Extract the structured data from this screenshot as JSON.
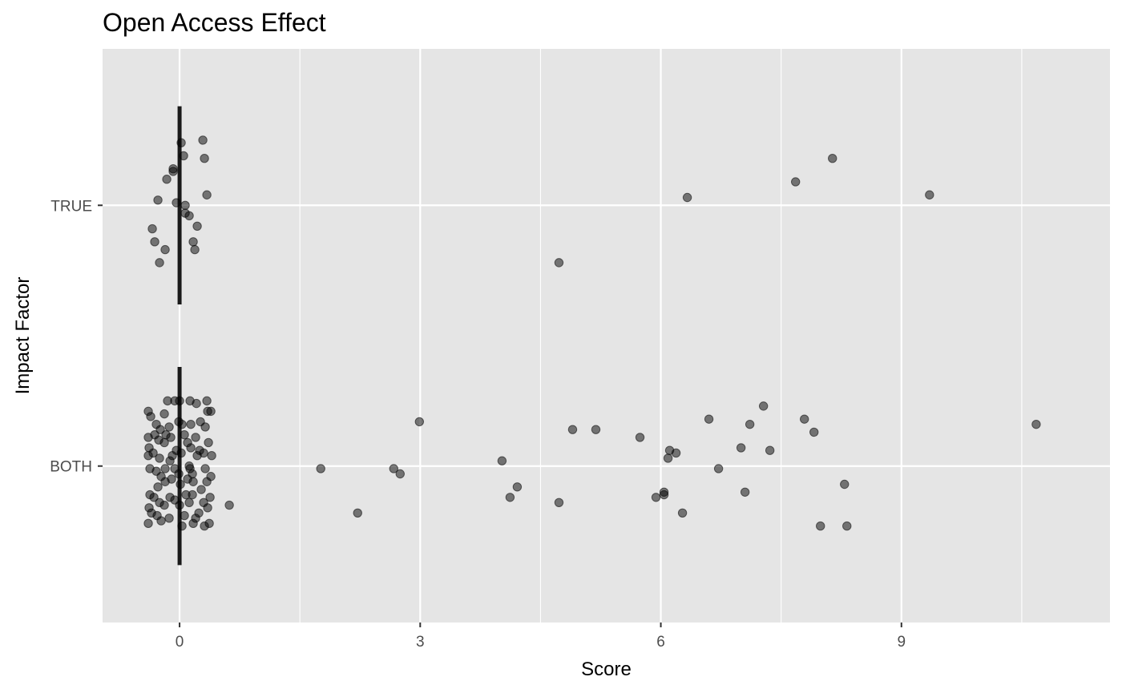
{
  "chart_data": {
    "type": "scatter",
    "title": "Open Access Effect",
    "xlabel": "Score",
    "ylabel": "Impact Factor",
    "xlim": [
      -0.96,
      11.6
    ],
    "x_ticks": [
      0,
      3,
      6,
      9
    ],
    "x_tick_labels": [
      "0",
      "3",
      "6",
      "9"
    ],
    "categories": [
      "BOTH",
      "TRUE"
    ],
    "grid": true,
    "legend": "none",
    "colors": {
      "panel": "#e5e5e5",
      "grid": "#ffffff",
      "point": "#000000",
      "point_opacity": 0.5,
      "bar": "#1a1a1a",
      "text": "#000000",
      "tick_text": "#4d4d4d"
    },
    "vertical_bars": [
      {
        "category": "TRUE",
        "x": 0,
        "y_range": [
          1.62,
          2.38
        ]
      },
      {
        "category": "BOTH",
        "x": 0,
        "y_range": [
          0.62,
          1.38
        ]
      }
    ],
    "series": [
      {
        "category": "TRUE",
        "points": [
          [
            0.29,
            2.25
          ],
          [
            0.02,
            2.24
          ],
          [
            0.31,
            2.18
          ],
          [
            0.05,
            2.19
          ],
          [
            -0.08,
            2.13
          ],
          [
            -0.16,
            2.1
          ],
          [
            -0.08,
            2.14
          ],
          [
            0.34,
            2.04
          ],
          [
            -0.27,
            2.02
          ],
          [
            -0.04,
            2.01
          ],
          [
            0.07,
            2.0
          ],
          [
            0.07,
            1.97
          ],
          [
            0.12,
            1.96
          ],
          [
            0.22,
            1.92
          ],
          [
            -0.34,
            1.91
          ],
          [
            0.17,
            1.86
          ],
          [
            -0.31,
            1.86
          ],
          [
            -0.18,
            1.83
          ],
          [
            0.19,
            1.83
          ],
          [
            -0.25,
            1.78
          ],
          [
            8.14,
            2.18
          ],
          [
            7.68,
            2.09
          ],
          [
            6.33,
            2.03
          ],
          [
            9.35,
            2.04
          ],
          [
            4.73,
            1.78
          ]
        ]
      },
      {
        "category": "BOTH",
        "points": [
          [
            -0.15,
            1.25
          ],
          [
            -0.06,
            1.25
          ],
          [
            0.0,
            1.25
          ],
          [
            0.13,
            1.25
          ],
          [
            0.21,
            1.24
          ],
          [
            0.34,
            1.25
          ],
          [
            -0.39,
            1.21
          ],
          [
            -0.19,
            1.2
          ],
          [
            0.35,
            1.21
          ],
          [
            0.39,
            1.21
          ],
          [
            -0.36,
            1.19
          ],
          [
            -0.01,
            1.17
          ],
          [
            -0.29,
            1.16
          ],
          [
            0.14,
            1.16
          ],
          [
            0.26,
            1.17
          ],
          [
            -0.13,
            1.15
          ],
          [
            0.03,
            1.16
          ],
          [
            0.32,
            1.15
          ],
          [
            -0.24,
            1.14
          ],
          [
            -0.31,
            1.12
          ],
          [
            -0.17,
            1.12
          ],
          [
            -0.39,
            1.11
          ],
          [
            -0.11,
            1.11
          ],
          [
            0.06,
            1.12
          ],
          [
            0.2,
            1.11
          ],
          [
            -0.26,
            1.1
          ],
          [
            -0.19,
            1.09
          ],
          [
            0.1,
            1.09
          ],
          [
            0.36,
            1.09
          ],
          [
            -0.38,
            1.07
          ],
          [
            -0.04,
            1.06
          ],
          [
            0.14,
            1.07
          ],
          [
            0.25,
            1.06
          ],
          [
            -0.33,
            1.05
          ],
          [
            0.02,
            1.05
          ],
          [
            0.3,
            1.05
          ],
          [
            -0.39,
            1.04
          ],
          [
            -0.09,
            1.04
          ],
          [
            0.22,
            1.04
          ],
          [
            0.4,
            1.04
          ],
          [
            -0.25,
            1.03
          ],
          [
            -0.12,
            1.02
          ],
          [
            0.12,
            1.0
          ],
          [
            -0.37,
            0.99
          ],
          [
            -0.18,
            0.99
          ],
          [
            -0.06,
            0.99
          ],
          [
            0.13,
            0.99
          ],
          [
            0.32,
            0.99
          ],
          [
            -0.29,
            0.98
          ],
          [
            -0.01,
            0.97
          ],
          [
            0.16,
            0.97
          ],
          [
            0.39,
            0.96
          ],
          [
            -0.23,
            0.96
          ],
          [
            -0.1,
            0.95
          ],
          [
            0.1,
            0.95
          ],
          [
            0.34,
            0.94
          ],
          [
            -0.18,
            0.94
          ],
          [
            0.17,
            0.94
          ],
          [
            -0.27,
            0.92
          ],
          [
            0.01,
            0.93
          ],
          [
            0.27,
            0.91
          ],
          [
            -0.37,
            0.89
          ],
          [
            -0.32,
            0.88
          ],
          [
            -0.12,
            0.88
          ],
          [
            0.08,
            0.89
          ],
          [
            0.16,
            0.89
          ],
          [
            0.38,
            0.88
          ],
          [
            -0.25,
            0.86
          ],
          [
            -0.06,
            0.87
          ],
          [
            0.12,
            0.86
          ],
          [
            0.3,
            0.86
          ],
          [
            -0.19,
            0.85
          ],
          [
            0.35,
            0.84
          ],
          [
            -0.38,
            0.84
          ],
          [
            0.0,
            0.85
          ],
          [
            -0.35,
            0.82
          ],
          [
            0.24,
            0.82
          ],
          [
            0.62,
            0.85
          ],
          [
            -0.28,
            0.81
          ],
          [
            -0.13,
            0.8
          ],
          [
            0.06,
            0.81
          ],
          [
            0.2,
            0.8
          ],
          [
            0.37,
            0.78
          ],
          [
            -0.39,
            0.78
          ],
          [
            -0.23,
            0.79
          ],
          [
            0.03,
            0.77
          ],
          [
            0.17,
            0.78
          ],
          [
            0.31,
            0.77
          ],
          [
            2.99,
            1.17
          ],
          [
            1.76,
            0.99
          ],
          [
            2.67,
            0.99
          ],
          [
            2.75,
            0.97
          ],
          [
            2.22,
            0.82
          ],
          [
            4.02,
            1.02
          ],
          [
            4.21,
            0.92
          ],
          [
            4.12,
            0.88
          ],
          [
            4.73,
            0.86
          ],
          [
            4.9,
            1.14
          ],
          [
            5.19,
            1.14
          ],
          [
            5.74,
            1.11
          ],
          [
            5.94,
            0.88
          ],
          [
            6.04,
            0.9
          ],
          [
            6.04,
            0.89
          ],
          [
            6.09,
            1.03
          ],
          [
            6.11,
            1.06
          ],
          [
            6.19,
            1.05
          ],
          [
            6.27,
            0.82
          ],
          [
            6.6,
            1.18
          ],
          [
            6.72,
            0.99
          ],
          [
            7.0,
            1.07
          ],
          [
            7.05,
            0.9
          ],
          [
            7.11,
            1.16
          ],
          [
            7.28,
            1.23
          ],
          [
            7.36,
            1.06
          ],
          [
            7.79,
            1.18
          ],
          [
            7.91,
            1.13
          ],
          [
            7.99,
            0.77
          ],
          [
            8.29,
            0.93
          ],
          [
            8.32,
            0.77
          ],
          [
            10.68,
            1.16
          ]
        ]
      }
    ]
  }
}
